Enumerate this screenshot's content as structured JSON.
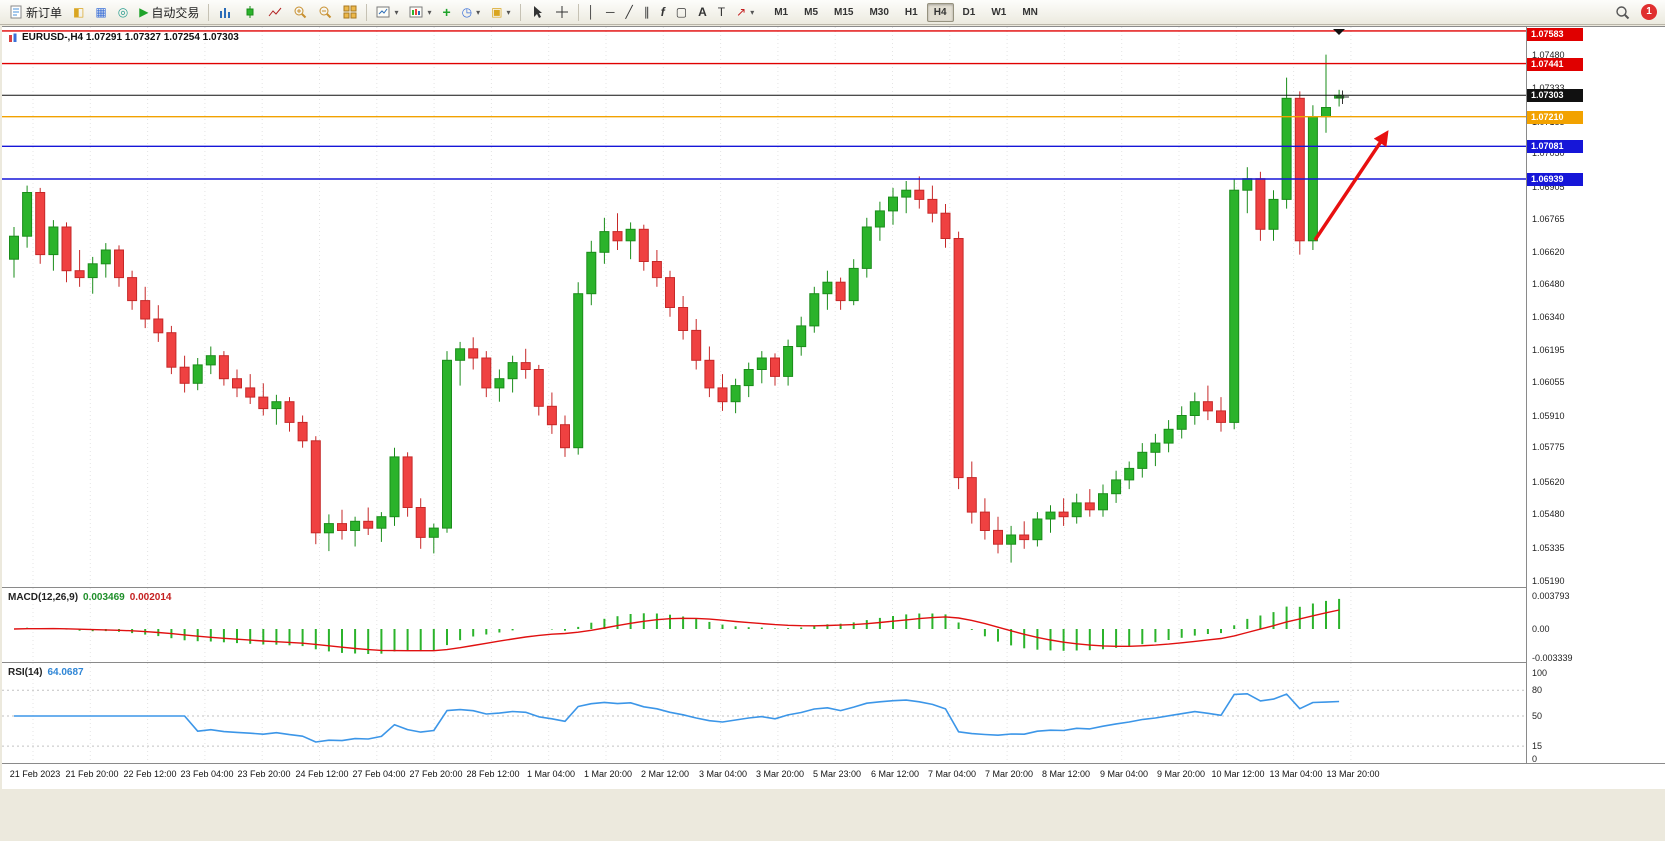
{
  "toolbar": {
    "new_order_label": "新订单",
    "auto_trading_label": "自动交易",
    "timeframes": [
      "M1",
      "M5",
      "M15",
      "M30",
      "H1",
      "H4",
      "D1",
      "W1",
      "MN"
    ],
    "active_timeframe": "H4",
    "notification_count": "1",
    "icons": {
      "market_watch": "◧",
      "data_window": "▦",
      "navigator": "◎",
      "auto_play": "▶",
      "indicator_plus": "+",
      "clock": "◷",
      "template": "▣",
      "vline": "│",
      "hline": "─",
      "trendline": "╱",
      "channel": "∥",
      "fibo": "f",
      "shapes": "▢",
      "text": "A",
      "label": "T",
      "arrow_tool": "↗",
      "dropdown": "▾"
    }
  },
  "chart": {
    "title": "EURUSD-,H4 1.07291 1.07327 1.07254 1.07303",
    "current_price": {
      "label": "1.07303",
      "value": 1.07303,
      "color": "#111111"
    },
    "arrow_color": "#e81010",
    "colors": {
      "up": "#2bb32b",
      "down": "#ef4141",
      "up_stroke": "#1a8c1a",
      "down_stroke": "#c62828"
    },
    "axis_labels": [
      "1.07480",
      "1.07333",
      "1.07185",
      "1.07050",
      "1.06905",
      "1.06765",
      "1.06620",
      "1.06480",
      "1.06340",
      "1.06195",
      "1.06055",
      "1.05910",
      "1.05775",
      "1.05620",
      "1.05480",
      "1.05335",
      "1.05190"
    ],
    "hlines": [
      {
        "label": "1.07583",
        "value": 1.07583,
        "color": "#e00000"
      },
      {
        "label": "1.07441",
        "value": 1.07441,
        "color": "#e00000"
      },
      {
        "label": "1.07210",
        "value": 1.0721,
        "color": "#f2a200"
      },
      {
        "label": "1.07081",
        "value": 1.07081,
        "color": "#1616d8"
      },
      {
        "label": "1.06939",
        "value": 1.06939,
        "color": "#1616d8"
      }
    ]
  },
  "chart_data": {
    "type": "candlestick",
    "symbol": "EURUSD-",
    "period": "H4",
    "candles": [
      [
        1.0659,
        1.0673,
        1.0651,
        1.0669
      ],
      [
        1.0669,
        1.0691,
        1.0664,
        1.0688
      ],
      [
        1.0688,
        1.069,
        1.0657,
        1.0661
      ],
      [
        1.0661,
        1.0676,
        1.0654,
        1.0673
      ],
      [
        1.0673,
        1.0675,
        1.0649,
        1.0654
      ],
      [
        1.0654,
        1.0663,
        1.0647,
        1.0651
      ],
      [
        1.0651,
        1.066,
        1.0644,
        1.0657
      ],
      [
        1.0657,
        1.0666,
        1.0651,
        1.0663
      ],
      [
        1.0663,
        1.0665,
        1.0647,
        1.0651
      ],
      [
        1.0651,
        1.0654,
        1.0637,
        1.0641
      ],
      [
        1.0641,
        1.0647,
        1.0629,
        1.0633
      ],
      [
        1.0633,
        1.0639,
        1.0623,
        1.0627
      ],
      [
        1.0627,
        1.063,
        1.0609,
        1.0612
      ],
      [
        1.0612,
        1.0617,
        1.0601,
        1.0605
      ],
      [
        1.0605,
        1.0616,
        1.0602,
        1.0613
      ],
      [
        1.0613,
        1.0621,
        1.0609,
        1.0617
      ],
      [
        1.0617,
        1.0619,
        1.0604,
        1.0607
      ],
      [
        1.0607,
        1.0611,
        1.0599,
        1.0603
      ],
      [
        1.0603,
        1.0609,
        1.0596,
        1.0599
      ],
      [
        1.0599,
        1.0605,
        1.0591,
        1.0594
      ],
      [
        1.0594,
        1.06,
        1.0587,
        1.0597
      ],
      [
        1.0597,
        1.0599,
        1.0584,
        1.0588
      ],
      [
        1.0588,
        1.0591,
        1.0577,
        1.058
      ],
      [
        1.058,
        1.0582,
        1.0535,
        1.054
      ],
      [
        1.054,
        1.0548,
        1.0532,
        1.0544
      ],
      [
        1.0544,
        1.055,
        1.0537,
        1.0541
      ],
      [
        1.0541,
        1.0547,
        1.0534,
        1.0545
      ],
      [
        1.0545,
        1.0551,
        1.0539,
        1.0542
      ],
      [
        1.0542,
        1.0549,
        1.0536,
        1.0547
      ],
      [
        1.0547,
        1.0577,
        1.0543,
        1.0573
      ],
      [
        1.0573,
        1.0575,
        1.0547,
        1.0551
      ],
      [
        1.0551,
        1.0555,
        1.0533,
        1.0538
      ],
      [
        1.0538,
        1.0544,
        1.0531,
        1.0542
      ],
      [
        1.0542,
        1.0619,
        1.054,
        1.0615
      ],
      [
        1.0615,
        1.0623,
        1.0604,
        1.062
      ],
      [
        1.062,
        1.0625,
        1.0611,
        1.0616
      ],
      [
        1.0616,
        1.0619,
        1.0599,
        1.0603
      ],
      [
        1.0603,
        1.0611,
        1.0597,
        1.0607
      ],
      [
        1.0607,
        1.0617,
        1.0601,
        1.0614
      ],
      [
        1.0614,
        1.062,
        1.0607,
        1.0611
      ],
      [
        1.0611,
        1.0613,
        1.0591,
        1.0595
      ],
      [
        1.0595,
        1.0601,
        1.0583,
        1.0587
      ],
      [
        1.0587,
        1.0591,
        1.0573,
        1.0577
      ],
      [
        1.0577,
        1.0649,
        1.0574,
        1.0644
      ],
      [
        1.0644,
        1.0667,
        1.0639,
        1.0662
      ],
      [
        1.0662,
        1.0677,
        1.0657,
        1.0671
      ],
      [
        1.0671,
        1.0679,
        1.0663,
        1.0667
      ],
      [
        1.0667,
        1.0675,
        1.0659,
        1.0672
      ],
      [
        1.0672,
        1.0674,
        1.0654,
        1.0658
      ],
      [
        1.0658,
        1.0663,
        1.0647,
        1.0651
      ],
      [
        1.0651,
        1.0654,
        1.0634,
        1.0638
      ],
      [
        1.0638,
        1.0643,
        1.0624,
        1.0628
      ],
      [
        1.0628,
        1.0633,
        1.0611,
        1.0615
      ],
      [
        1.0615,
        1.0621,
        1.0599,
        1.0603
      ],
      [
        1.0603,
        1.0609,
        1.0593,
        1.0597
      ],
      [
        1.0597,
        1.0607,
        1.0592,
        1.0604
      ],
      [
        1.0604,
        1.0614,
        1.0599,
        1.0611
      ],
      [
        1.0611,
        1.0619,
        1.0605,
        1.0616
      ],
      [
        1.0616,
        1.0618,
        1.0604,
        1.0608
      ],
      [
        1.0608,
        1.0624,
        1.0604,
        1.0621
      ],
      [
        1.0621,
        1.0634,
        1.0617,
        1.063
      ],
      [
        1.063,
        1.0647,
        1.0627,
        1.0644
      ],
      [
        1.0644,
        1.0654,
        1.0637,
        1.0649
      ],
      [
        1.0649,
        1.0651,
        1.0637,
        1.0641
      ],
      [
        1.0641,
        1.0659,
        1.0639,
        1.0655
      ],
      [
        1.0655,
        1.0677,
        1.0651,
        1.0673
      ],
      [
        1.0673,
        1.0684,
        1.0667,
        1.068
      ],
      [
        1.068,
        1.069,
        1.0674,
        1.0686
      ],
      [
        1.0686,
        1.0693,
        1.0679,
        1.0689
      ],
      [
        1.0689,
        1.0695,
        1.0681,
        1.0685
      ],
      [
        1.0685,
        1.0691,
        1.0675,
        1.0679
      ],
      [
        1.0679,
        1.0683,
        1.0664,
        1.0668
      ],
      [
        1.0668,
        1.0671,
        1.0559,
        1.0564
      ],
      [
        1.0564,
        1.0571,
        1.0544,
        1.0549
      ],
      [
        1.0549,
        1.0555,
        1.0537,
        1.0541
      ],
      [
        1.0541,
        1.0547,
        1.0531,
        1.0535
      ],
      [
        1.0535,
        1.0543,
        1.0527,
        1.0539
      ],
      [
        1.0539,
        1.0545,
        1.0533,
        1.0537
      ],
      [
        1.0537,
        1.0549,
        1.0534,
        1.0546
      ],
      [
        1.0546,
        1.0552,
        1.054,
        1.0549
      ],
      [
        1.0549,
        1.0555,
        1.0543,
        1.0547
      ],
      [
        1.0547,
        1.0557,
        1.0544,
        1.0553
      ],
      [
        1.0553,
        1.0559,
        1.0547,
        1.055
      ],
      [
        1.055,
        1.0561,
        1.0547,
        1.0557
      ],
      [
        1.0557,
        1.0567,
        1.0553,
        1.0563
      ],
      [
        1.0563,
        1.0571,
        1.0559,
        1.0568
      ],
      [
        1.0568,
        1.0579,
        1.0564,
        1.0575
      ],
      [
        1.0575,
        1.0583,
        1.0569,
        1.0579
      ],
      [
        1.0579,
        1.0589,
        1.0575,
        1.0585
      ],
      [
        1.0585,
        1.0595,
        1.0581,
        1.0591
      ],
      [
        1.0591,
        1.0601,
        1.0587,
        1.0597
      ],
      [
        1.0597,
        1.0604,
        1.0589,
        1.0593
      ],
      [
        1.0593,
        1.0599,
        1.0584,
        1.0588
      ],
      [
        1.0588,
        1.0694,
        1.0585,
        1.0689
      ],
      [
        1.0689,
        1.0699,
        1.0679,
        1.0694
      ],
      [
        1.0694,
        1.0697,
        1.0667,
        1.0672
      ],
      [
        1.0672,
        1.0689,
        1.0667,
        1.0685
      ],
      [
        1.0685,
        1.0738,
        1.0681,
        1.0729
      ],
      [
        1.0729,
        1.0732,
        1.0661,
        1.0667
      ],
      [
        1.0667,
        1.0726,
        1.0663,
        1.0721
      ],
      [
        1.0721,
        1.0748,
        1.0714,
        1.0725
      ],
      [
        1.07291,
        1.07327,
        1.07254,
        1.07303
      ]
    ]
  },
  "macd": {
    "label": "MACD(12,26,9)",
    "main_value": "0.003469",
    "signal_value": "0.002014",
    "range": {
      "max": 0.003793,
      "min": -0.003339
    },
    "axis": [
      {
        "label": "0.003793",
        "value": 0.003793
      },
      {
        "label": "0.00",
        "value": 0
      },
      {
        "label": "-0.003339",
        "value": -0.003339
      }
    ],
    "colors": {
      "histogram": "#2bb32b",
      "signal": "#e01010"
    }
  },
  "rsi": {
    "label": "RSI(14)",
    "value": "64.0687",
    "color": "#3c96e8",
    "levels": [
      {
        "label": "100",
        "value": 100,
        "dashed": false
      },
      {
        "label": "80",
        "value": 80,
        "dashed": true
      },
      {
        "label": "50",
        "value": 50,
        "dashed": true
      },
      {
        "label": "15",
        "value": 15,
        "dashed": true
      },
      {
        "label": "0",
        "value": 0,
        "dashed": false
      }
    ]
  },
  "time_axis": [
    "21 Feb 2023",
    "21 Feb 20:00",
    "22 Feb 12:00",
    "23 Feb 04:00",
    "23 Feb 20:00",
    "24 Feb 12:00",
    "27 Feb 04:00",
    "27 Feb 20:00",
    "28 Feb 12:00",
    "1 Mar 04:00",
    "1 Mar 20:00",
    "2 Mar 12:00",
    "3 Mar 04:00",
    "3 Mar 20:00",
    "5 Mar 23:00",
    "6 Mar 12:00",
    "7 Mar 04:00",
    "7 Mar 20:00",
    "8 Mar 12:00",
    "9 Mar 04:00",
    "9 Mar 20:00",
    "10 Mar 12:00",
    "13 Mar 04:00",
    "13 Mar 20:00"
  ]
}
